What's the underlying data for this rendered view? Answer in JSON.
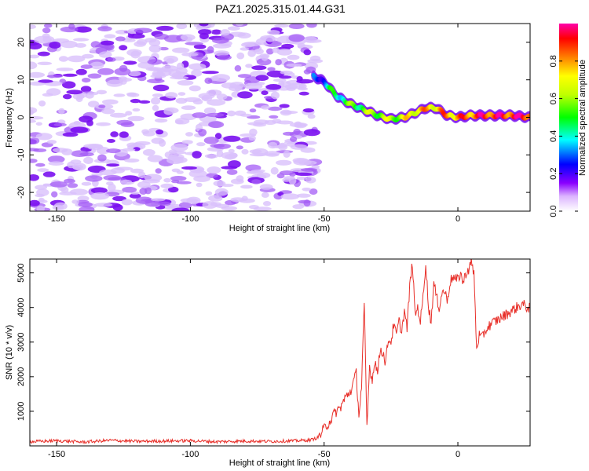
{
  "chart_data": [
    {
      "type": "heatmap",
      "title": "PAZ1.2025.315.01.44.G31",
      "xlabel": "Height of straight line (km)",
      "ylabel": "Frequency (Hz)",
      "xlim": [
        -160,
        27
      ],
      "ylim": [
        -25,
        25
      ],
      "xticks": [
        -150,
        -100,
        -50,
        0
      ],
      "yticks": [
        20,
        10,
        0,
        -10,
        -20
      ],
      "colorbar": {
        "label": "Normalized spectral amplitude",
        "range": [
          0,
          1
        ],
        "ticks": [
          0.0,
          0.2,
          0.4,
          0.6,
          0.8
        ]
      },
      "noise_region_x": [
        -160,
        -53
      ],
      "ridge": {
        "x": [
          -54,
          -50,
          -45,
          -40,
          -35,
          -30,
          -25,
          -20,
          -15,
          -12,
          -8,
          -4,
          0,
          5,
          10,
          15,
          20,
          27
        ],
        "freq": [
          11,
          9.5,
          5.5,
          3.5,
          2,
          0.5,
          -0.5,
          0,
          1.5,
          2.5,
          2.5,
          0.5,
          0,
          0.5,
          0.5,
          0.5,
          0.5,
          0
        ],
        "amp": [
          0.2,
          0.35,
          0.45,
          0.5,
          0.55,
          0.6,
          0.6,
          0.65,
          0.75,
          0.75,
          0.75,
          0.8,
          0.8,
          0.85,
          0.9,
          0.9,
          0.9,
          0.95
        ]
      }
    },
    {
      "type": "line",
      "xlabel": "Height of straight line (km)",
      "ylabel": "SNR (10 * v/v)",
      "xlim": [
        -160,
        27
      ],
      "ylim": [
        0,
        5400
      ],
      "xticks": [
        -150,
        -100,
        -50,
        0
      ],
      "yticks": [
        1000,
        2000,
        3000,
        4000,
        5000
      ],
      "series": [
        {
          "name": "SNR",
          "color": "#e8302a",
          "x": [
            -160,
            -150,
            -140,
            -130,
            -120,
            -110,
            -100,
            -90,
            -80,
            -70,
            -60,
            -55,
            -52,
            -50,
            -48,
            -46,
            -44,
            -42,
            -40,
            -38,
            -37,
            -36,
            -35,
            -34,
            -33,
            -32,
            -31,
            -30,
            -29,
            -28,
            -27,
            -26,
            -25,
            -24,
            -23,
            -22,
            -21,
            -20,
            -19,
            -18,
            -17,
            -16,
            -15,
            -14,
            -13,
            -12,
            -11,
            -10,
            -9,
            -8,
            -7,
            -6,
            -5,
            -4,
            -3,
            -2,
            -1,
            0,
            1,
            2,
            3,
            4,
            5,
            6,
            7,
            8,
            9,
            10,
            11,
            12,
            14,
            16,
            18,
            20,
            22,
            24,
            26,
            27
          ],
          "y": [
            120,
            150,
            110,
            160,
            130,
            140,
            150,
            120,
            140,
            130,
            150,
            170,
            250,
            500,
            700,
            950,
            1100,
            1400,
            1600,
            2100,
            900,
            1700,
            4100,
            500,
            2300,
            1900,
            2500,
            2100,
            2800,
            2700,
            2400,
            3100,
            3000,
            3500,
            3200,
            3600,
            3300,
            3900,
            3400,
            4600,
            5300,
            3800,
            4000,
            3600,
            4300,
            5300,
            4000,
            3600,
            4700,
            4300,
            4000,
            4400,
            4500,
            4200,
            4700,
            4900,
            4800,
            4800,
            5000,
            4700,
            5000,
            5100,
            5300,
            5000,
            2800,
            3200,
            3100,
            3300,
            3400,
            3500,
            3600,
            3700,
            3800,
            3900,
            4000,
            4100,
            4000,
            4000
          ]
        }
      ]
    }
  ]
}
